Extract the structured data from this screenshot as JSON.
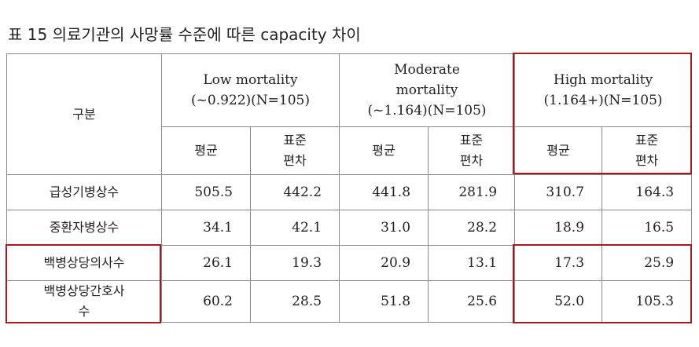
{
  "caption": "표 15 의료기관의 사망률 수준에 따른 capacity 차이",
  "table": {
    "corner": "구분",
    "groups": [
      {
        "line1": "Low mortality",
        "line2": "(~0.922)(N=105)",
        "line3": ""
      },
      {
        "line1": "Moderate",
        "line2": "mortality",
        "line3": "(~1.164)(N=105)"
      },
      {
        "line1": "High mortality",
        "line2": "(1.164+)(N=105)",
        "line3": ""
      }
    ],
    "sub": {
      "mean": "평균",
      "sd_line1": "표준",
      "sd_line2": "편차"
    },
    "rows": [
      {
        "label": "급성기병상수",
        "label2": "",
        "values": [
          "505.5",
          "442.2",
          "441.8",
          "281.9",
          "310.7",
          "164.3"
        ]
      },
      {
        "label": "중환자병상수",
        "label2": "",
        "values": [
          "34.1",
          "42.1",
          "31.0",
          "28.2",
          "18.9",
          "16.5"
        ]
      },
      {
        "label": "백병상당의사수",
        "label2": "",
        "values": [
          "26.1",
          "19.3",
          "20.9",
          "13.1",
          "17.3",
          "25.9"
        ]
      },
      {
        "label": "백병상당간호사",
        "label2": "수",
        "values": [
          "60.2",
          "28.5",
          "51.8",
          "25.6",
          "52.0",
          "105.3"
        ]
      }
    ]
  },
  "highlight_color": "#a01c20"
}
